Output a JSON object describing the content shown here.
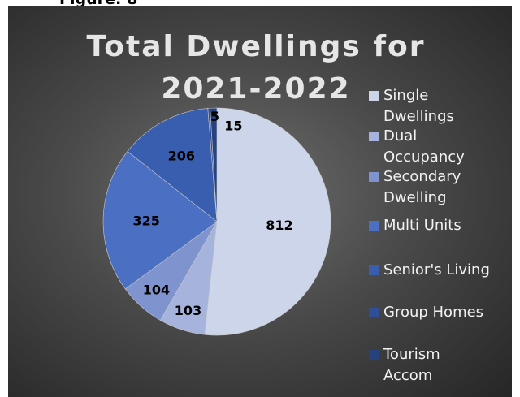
{
  "figure_caption": "Figure: 8",
  "chart_data": {
    "type": "pie",
    "title": "Total Dwellings for 2021-2022",
    "slices": [
      {
        "label": "Single Dwellings",
        "value": 812,
        "color": "#cdd5eb"
      },
      {
        "label": "Dual Occupancy",
        "value": 103,
        "color": "#a6b3dc"
      },
      {
        "label": "Secondary Dwelling",
        "value": 104,
        "color": "#7f94ce"
      },
      {
        "label": "Multi Units",
        "value": 325,
        "color": "#4a6fc3"
      },
      {
        "label": "Senior's Living",
        "value": 206,
        "color": "#3a5eaf"
      },
      {
        "label": "Group Homes",
        "value": 5,
        "color": "#2e4e98"
      },
      {
        "label": "Tourism Accom",
        "value": 15,
        "color": "#26427f"
      }
    ],
    "legend": [
      [
        "Single",
        "Dwellings"
      ],
      [
        "Dual",
        "Occupancy"
      ],
      [
        "Secondary",
        "Dwelling"
      ],
      [
        "Multi Units"
      ],
      [
        "Senior's Living"
      ],
      [
        "Group Homes"
      ],
      [
        "Tourism",
        "Accom"
      ]
    ],
    "legend_position": "right"
  }
}
